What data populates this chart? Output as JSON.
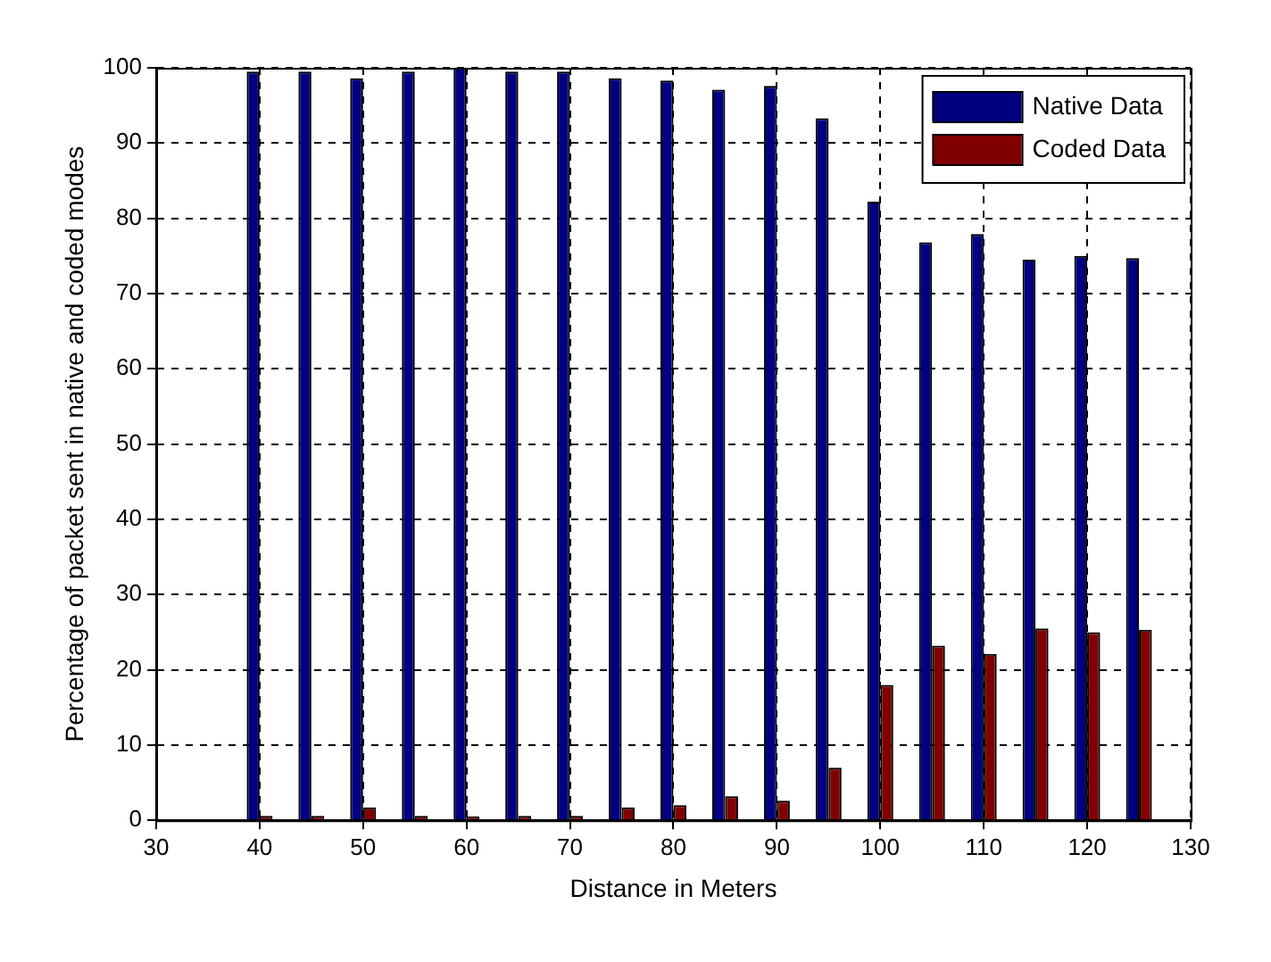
{
  "chart_data": {
    "type": "bar",
    "xlabel": "Distance in Meters",
    "ylabel": "Percentage of packet sent in native and coded modes",
    "x": [
      40,
      45,
      50,
      55,
      60,
      65,
      70,
      75,
      80,
      85,
      90,
      95,
      100,
      105,
      110,
      115,
      120,
      125
    ],
    "series": [
      {
        "name": "Native Data",
        "color": "#000080",
        "values": [
          99.5,
          99.5,
          98.6,
          99.5,
          100,
          99.5,
          99.5,
          98.6,
          98.3,
          97.1,
          97.6,
          93.3,
          82.2,
          76.8,
          77.9,
          74.5,
          75,
          74.7
        ]
      },
      {
        "name": "Coded Data",
        "color": "#800000",
        "values": [
          0.6,
          0.6,
          1.7,
          0.6,
          0.5,
          0.6,
          0.6,
          1.7,
          2,
          3.2,
          2.6,
          7,
          18,
          23.2,
          22.1,
          25.5,
          25,
          25.3
        ]
      }
    ],
    "xlim": [
      30,
      130
    ],
    "xticks": [
      30,
      40,
      50,
      60,
      70,
      80,
      90,
      100,
      110,
      120,
      130
    ],
    "ylim": [
      0,
      100
    ],
    "yticks": [
      0,
      10,
      20,
      30,
      40,
      50,
      60,
      70,
      80,
      90,
      100
    ],
    "grid": true,
    "legend": "top right"
  }
}
